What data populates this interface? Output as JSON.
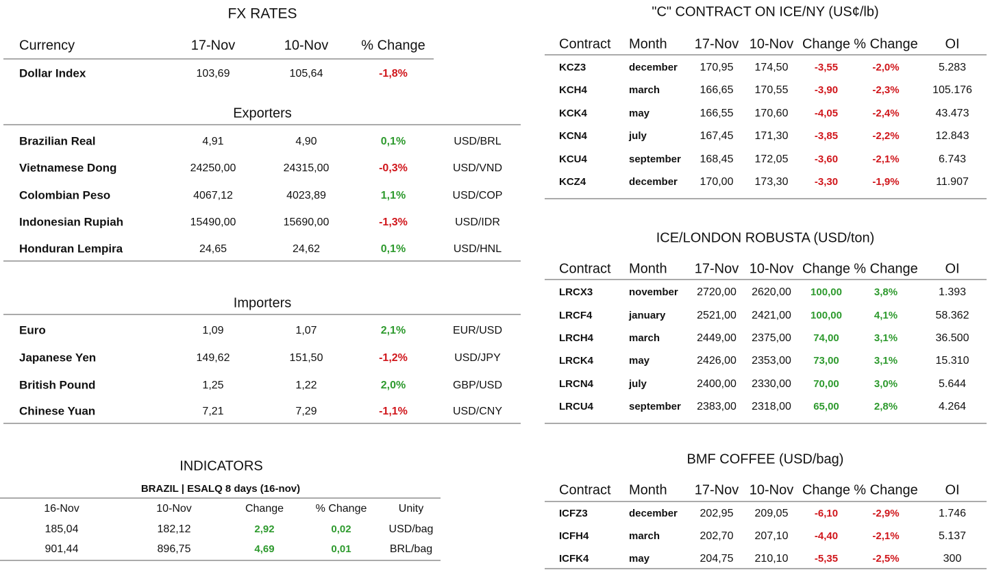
{
  "fx": {
    "title": "FX RATES",
    "header": [
      "Currency",
      "17-Nov",
      "10-Nov",
      "% Change"
    ],
    "rows": [
      [
        "Dollar Index",
        "103,69",
        "105,64",
        "-1,8%"
      ]
    ]
  },
  "exporters": {
    "title": "Exporters",
    "rows": [
      [
        "Brazilian Real",
        "4,91",
        "4,90",
        "0,1%",
        "USD/BRL"
      ],
      [
        "Vietnamese Dong",
        "24250,00",
        "24315,00",
        "-0,3%",
        "USD/VND"
      ],
      [
        "Colombian Peso",
        "4067,12",
        "4023,89",
        "1,1%",
        "USD/COP"
      ],
      [
        "Indonesian Rupiah",
        "15490,00",
        "15690,00",
        "-1,3%",
        "USD/IDR"
      ],
      [
        "Honduran Lempira",
        "24,65",
        "24,62",
        "0,1%",
        "USD/HNL"
      ]
    ]
  },
  "importers": {
    "title": "Importers",
    "rows": [
      [
        "Euro",
        "1,09",
        "1,07",
        "2,1%",
        "EUR/USD"
      ],
      [
        "Japanese Yen",
        "149,62",
        "151,50",
        "-1,2%",
        "USD/JPY"
      ],
      [
        "British Pound",
        "1,25",
        "1,22",
        "2,0%",
        "GBP/USD"
      ],
      [
        "Chinese Yuan",
        "7,21",
        "7,29",
        "-1,1%",
        "USD/CNY"
      ]
    ]
  },
  "indicators": {
    "title": "INDICATORS",
    "subtitle": "BRAZIL | ESALQ 8 days (16-nov)",
    "header": [
      "16-Nov",
      "10-Nov",
      "Change",
      "% Change",
      "Unity"
    ],
    "rows": [
      [
        "185,04",
        "182,12",
        "2,92",
        "0,02",
        "USD/bag"
      ],
      [
        "901,44",
        "896,75",
        "4,69",
        "0,01",
        "BRL/bag"
      ]
    ]
  },
  "contracts": [
    {
      "title": "\"C\" CONTRACT ON ICE/NY (US¢/lb)",
      "header": [
        "Contract",
        "Month",
        "17-Nov",
        "10-Nov",
        "Change",
        "% Change",
        "OI"
      ],
      "rows": [
        [
          "KCZ3",
          "december",
          "170,95",
          "174,50",
          "-3,55",
          "-2,0%",
          "5.283"
        ],
        [
          "KCH4",
          "march",
          "166,65",
          "170,55",
          "-3,90",
          "-2,3%",
          "105.176"
        ],
        [
          "KCK4",
          "may",
          "166,55",
          "170,60",
          "-4,05",
          "-2,4%",
          "43.473"
        ],
        [
          "KCN4",
          "july",
          "167,45",
          "171,30",
          "-3,85",
          "-2,2%",
          "12.843"
        ],
        [
          "KCU4",
          "september",
          "168,45",
          "172,05",
          "-3,60",
          "-2,1%",
          "6.743"
        ],
        [
          "KCZ4",
          "december",
          "170,00",
          "173,30",
          "-3,30",
          "-1,9%",
          "11.907"
        ]
      ]
    },
    {
      "title": "ICE/LONDON ROBUSTA (USD/ton)",
      "header": [
        "Contract",
        "Month",
        "17-Nov",
        "10-Nov",
        "Change",
        "% Change",
        "OI"
      ],
      "rows": [
        [
          "LRCX3",
          "november",
          "2720,00",
          "2620,00",
          "100,00",
          "3,8%",
          "1.393"
        ],
        [
          "LRCF4",
          "january",
          "2521,00",
          "2421,00",
          "100,00",
          "4,1%",
          "58.362"
        ],
        [
          "LRCH4",
          "march",
          "2449,00",
          "2375,00",
          "74,00",
          "3,1%",
          "36.500"
        ],
        [
          "LRCK4",
          "may",
          "2426,00",
          "2353,00",
          "73,00",
          "3,1%",
          "15.310"
        ],
        [
          "LRCN4",
          "july",
          "2400,00",
          "2330,00",
          "70,00",
          "3,0%",
          "5.644"
        ],
        [
          "LRCU4",
          "september",
          "2383,00",
          "2318,00",
          "65,00",
          "2,8%",
          "4.264"
        ]
      ]
    },
    {
      "title": "BMF COFFEE (USD/bag)",
      "header": [
        "Contract",
        "Month",
        "17-Nov",
        "10-Nov",
        "Change",
        "% Change",
        "OI"
      ],
      "rows": [
        [
          "ICFZ3",
          "december",
          "202,95",
          "209,05",
          "-6,10",
          "-2,9%",
          "1.746"
        ],
        [
          "ICFH4",
          "march",
          "202,70",
          "207,10",
          "-4,40",
          "-2,1%",
          "5.137"
        ],
        [
          "ICFK4",
          "may",
          "204,75",
          "210,10",
          "-5,35",
          "-2,5%",
          "300"
        ]
      ]
    }
  ]
}
